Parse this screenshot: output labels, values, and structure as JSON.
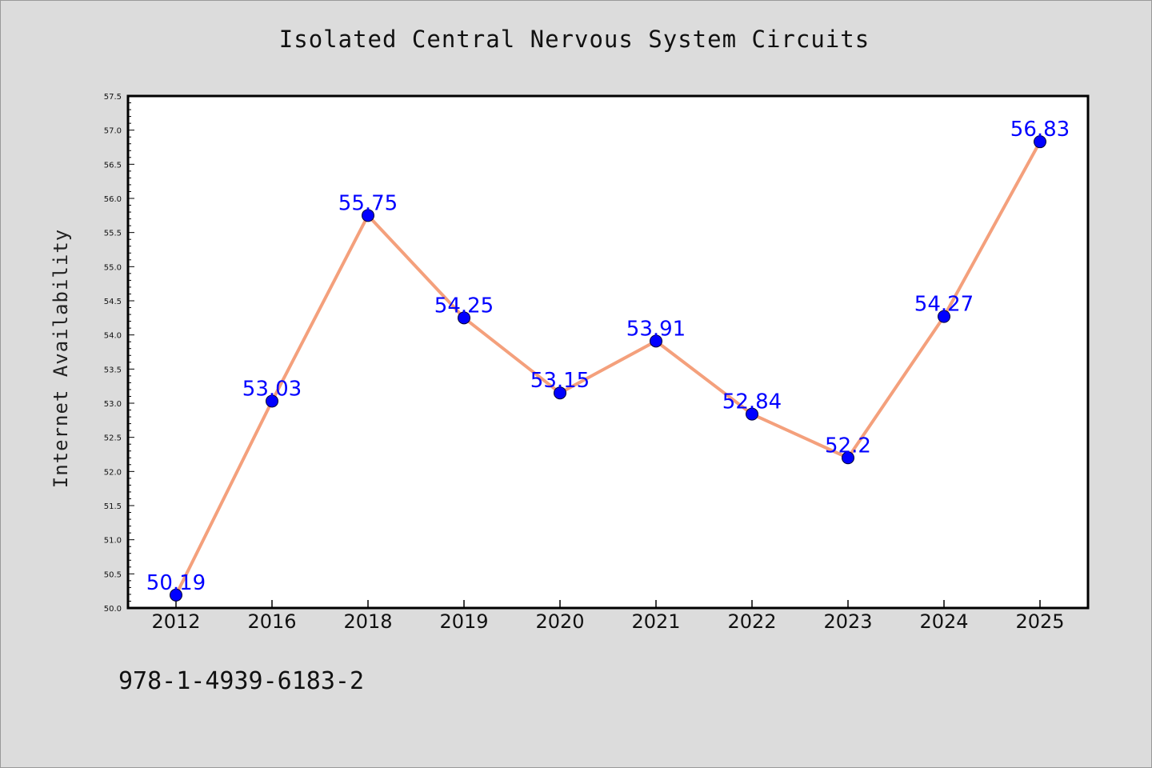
{
  "chart_data": {
    "type": "line",
    "title": "Isolated Central Nervous System Circuits",
    "xlabel": "",
    "ylabel": "Internet Availability",
    "categories": [
      "2012",
      "2016",
      "2018",
      "2019",
      "2020",
      "2021",
      "2022",
      "2023",
      "2024",
      "2025"
    ],
    "series": [
      {
        "values": [
          50.19,
          53.03,
          55.75,
          54.25,
          53.15,
          53.91,
          52.84,
          52.2,
          54.27,
          56.83
        ],
        "line_color": "#f4a07c",
        "marker_color": "#0000ff"
      }
    ],
    "data_labels": [
      "50.19",
      "53.03",
      "55.75",
      "54.25",
      "53.15",
      "53.91",
      "52.84",
      "52.2",
      "54.27",
      "56.83"
    ],
    "ylim": [
      50.0,
      57.5
    ],
    "yticks": [
      "50.0",
      "50.5",
      "51.0",
      "51.5",
      "52.0",
      "52.5",
      "53.0",
      "53.5",
      "54.0",
      "54.5",
      "55.0",
      "55.5",
      "56.0",
      "56.5",
      "57.0",
      "57.5"
    ],
    "grid": false,
    "legend": "none"
  },
  "footer": {
    "identifier": "978-1-4939-6183-2"
  },
  "colors": {
    "background": "#dcdcdc",
    "plot_area": "#ffffff",
    "line": "#f4a07c",
    "marker": "#0000ff",
    "label": "#0000ff"
  }
}
